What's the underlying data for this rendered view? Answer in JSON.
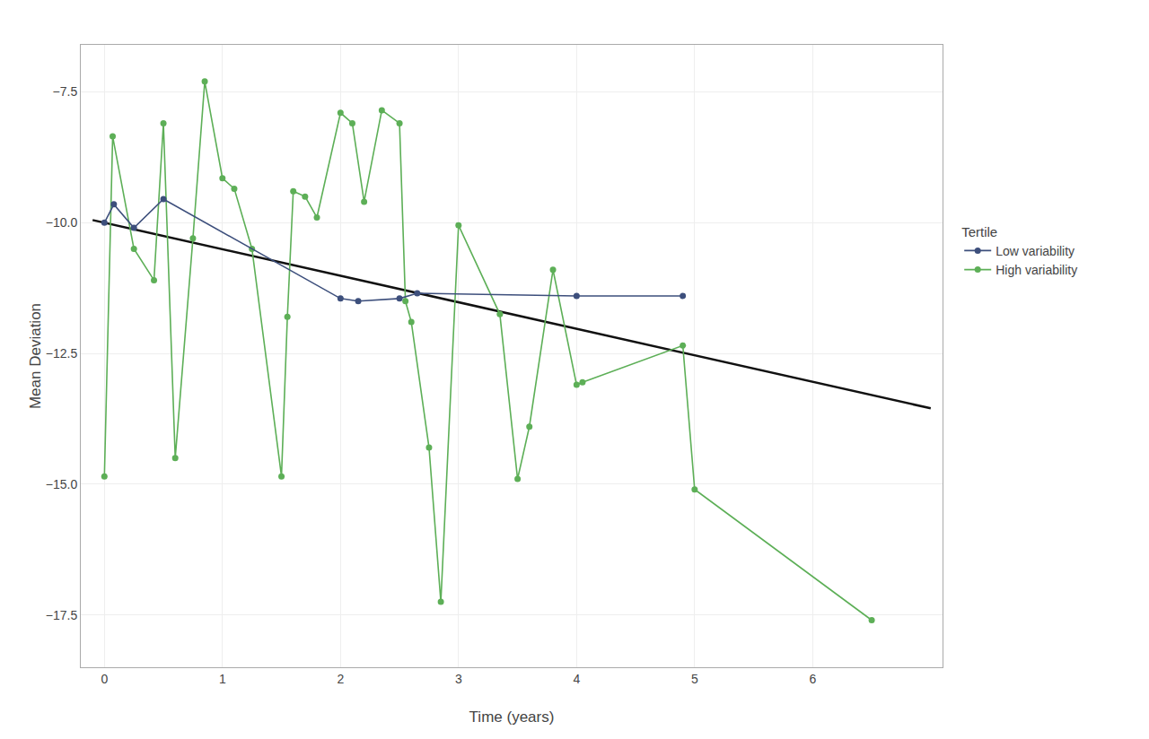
{
  "chart_data": {
    "type": "line",
    "xlabel": "Time (years)",
    "ylabel": "Mean Deviation",
    "legend_title": "Tertile",
    "legend": "right",
    "grid": true,
    "xlim": [
      -0.2,
      7.1
    ],
    "ylim": [
      -18.5,
      -6.6
    ],
    "xticks": [
      0,
      1,
      2,
      3,
      4,
      5,
      6
    ],
    "yticks": [
      {
        "value": -17.5,
        "label": "−17.5"
      },
      {
        "value": -15.0,
        "label": "−15.0"
      },
      {
        "value": -12.5,
        "label": "−12.5"
      },
      {
        "value": -10.0,
        "label": "−10.0"
      },
      {
        "value": -7.5,
        "label": "−7.5"
      }
    ],
    "series": [
      {
        "color": "#111111",
        "x": [
          -0.1,
          7.0
        ],
        "values": [
          -9.95,
          -13.55
        ]
      },
      {
        "name": "High variability",
        "color": "#5daf57",
        "marker": "circle",
        "x": [
          0.0,
          0.07,
          0.25,
          0.42,
          0.5,
          0.6,
          0.75,
          0.85,
          1.0,
          1.1,
          1.25,
          1.5,
          1.55,
          1.6,
          1.7,
          1.8,
          2.0,
          2.1,
          2.2,
          2.35,
          2.5,
          2.55,
          2.6,
          2.75,
          2.85,
          3.0,
          3.35,
          3.5,
          3.6,
          3.8,
          4.0,
          4.05,
          4.9,
          5.0,
          6.5
        ],
        "values": [
          -14.85,
          -8.35,
          -10.5,
          -11.1,
          -8.1,
          -14.5,
          -10.3,
          -7.3,
          -9.15,
          -9.35,
          -10.5,
          -14.85,
          -11.8,
          -9.4,
          -9.5,
          -9.9,
          -7.9,
          -8.1,
          -9.6,
          -7.85,
          -8.1,
          -11.5,
          -11.9,
          -14.3,
          -17.25,
          -10.05,
          -11.75,
          -14.9,
          -13.9,
          -10.9,
          -13.1,
          -13.05,
          -12.35,
          -15.1,
          -17.6
        ]
      },
      {
        "name": "Low variability",
        "color": "#3d4f7c",
        "marker": "circle",
        "x": [
          0.0,
          0.08,
          0.25,
          0.5,
          2.0,
          2.15,
          2.5,
          2.65,
          4.0,
          4.9
        ],
        "values": [
          -10.0,
          -9.65,
          -10.1,
          -9.55,
          -11.45,
          -11.5,
          -11.45,
          -11.35,
          -11.4,
          -11.4
        ]
      }
    ]
  }
}
